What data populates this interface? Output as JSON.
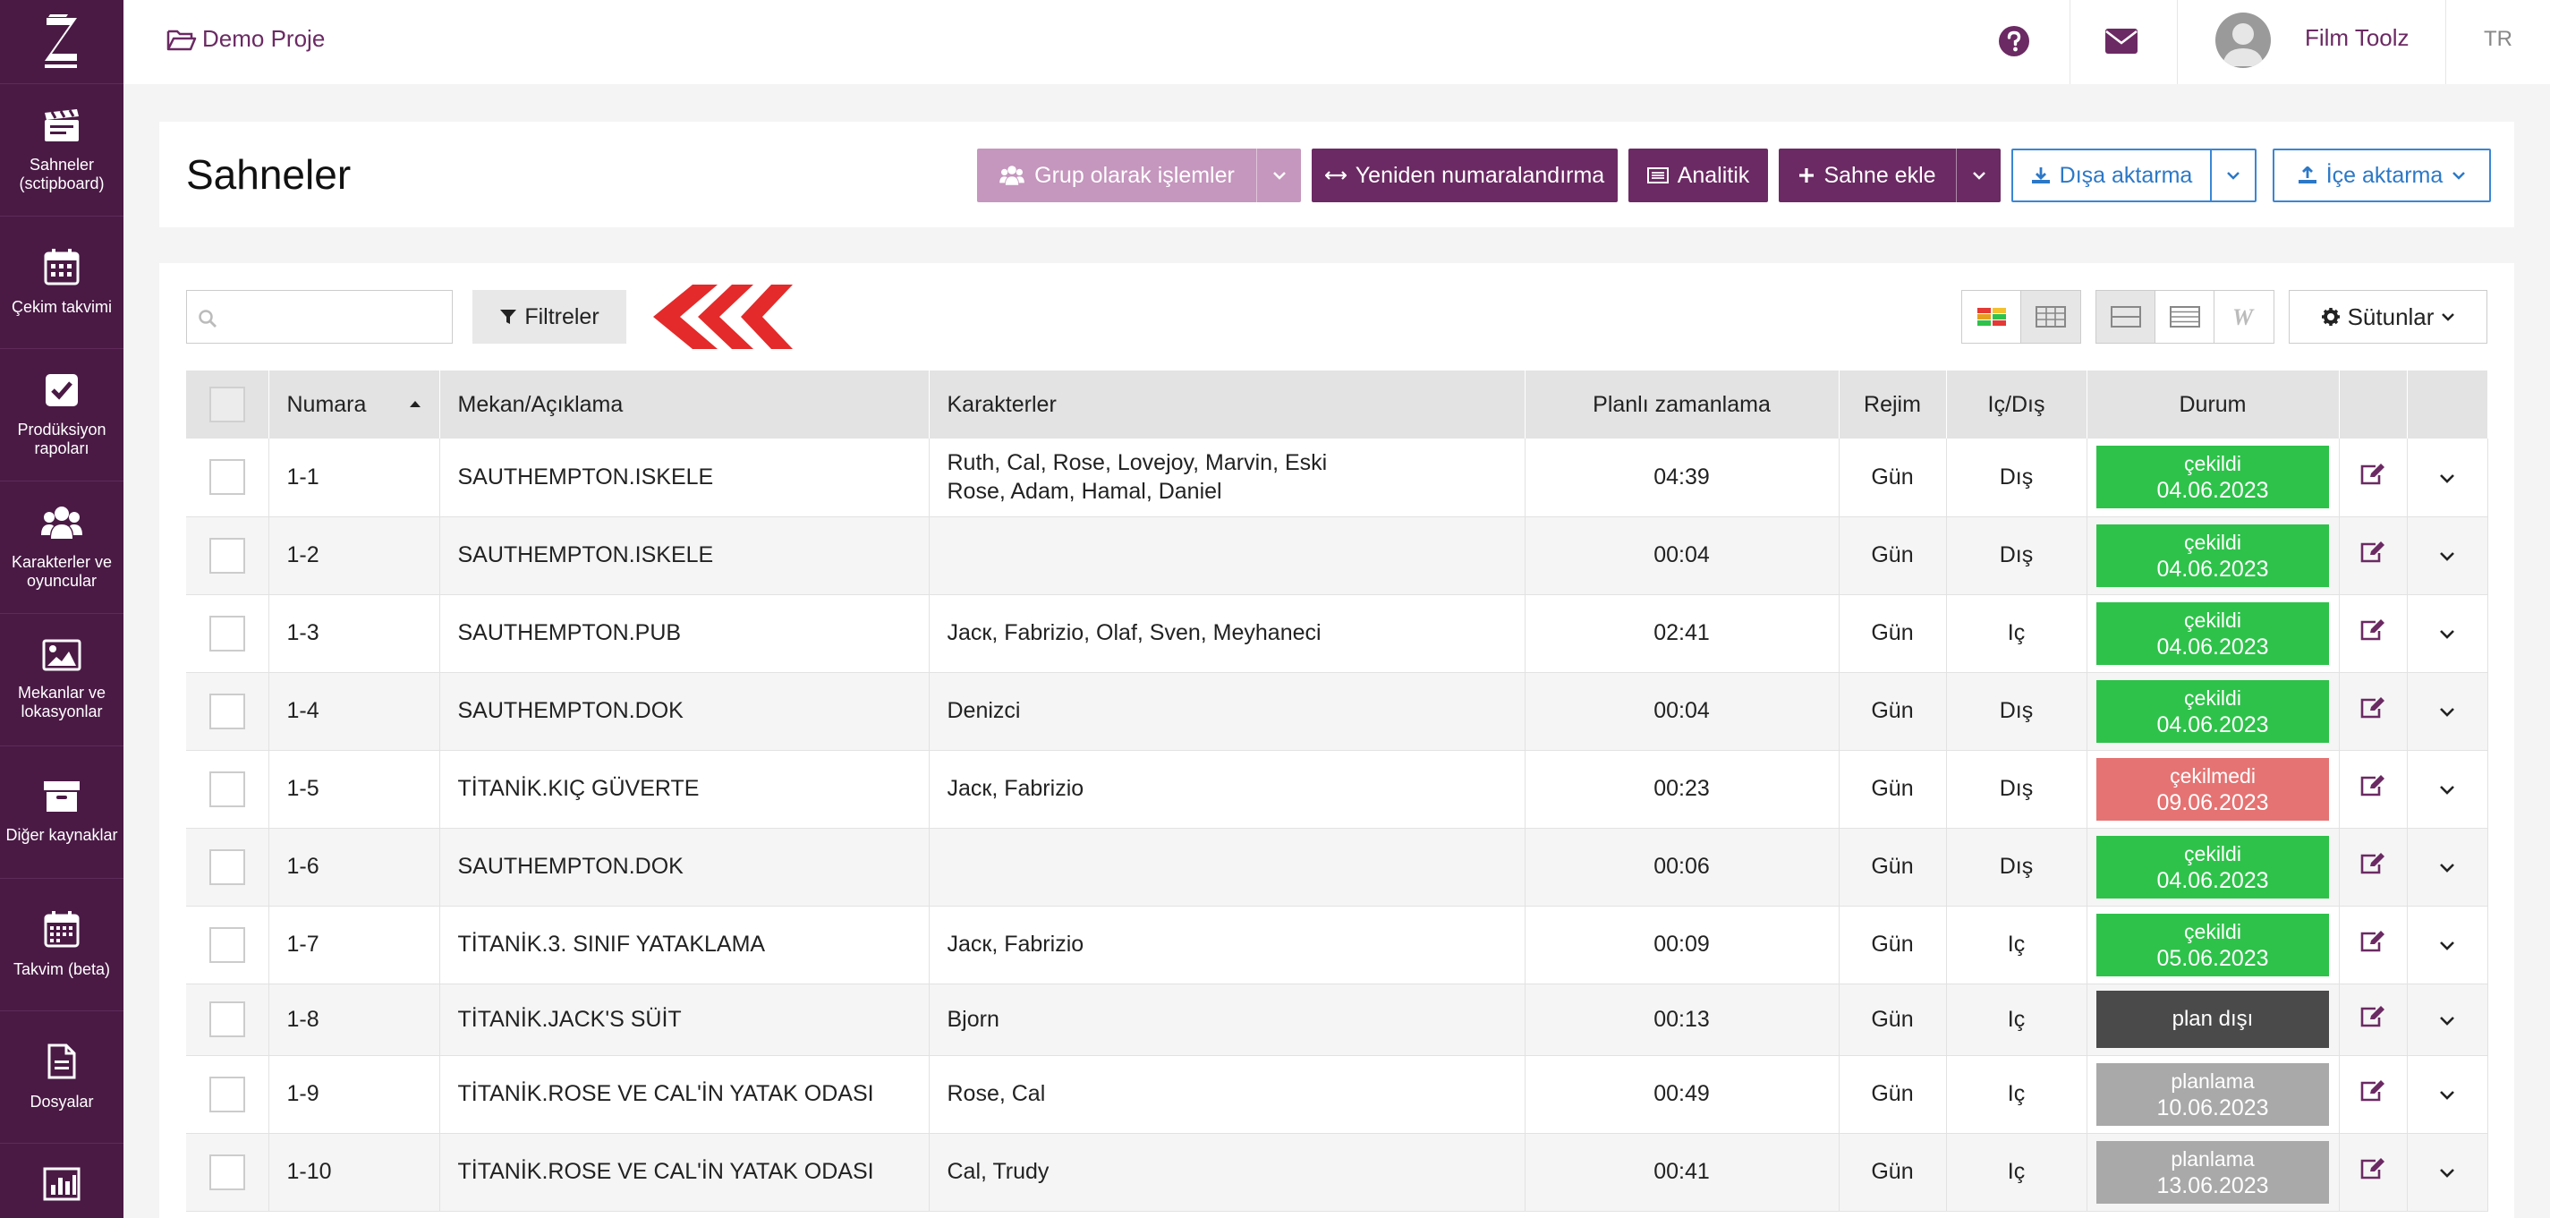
{
  "sidebar": {
    "items": [
      {
        "label": "Sahneler (sctipboard)",
        "icon": "clapperboard-icon"
      },
      {
        "label": "Çekim takvimi",
        "icon": "calendar-icon"
      },
      {
        "label": "Prodüksiyon rapoları",
        "icon": "checkbox-icon"
      },
      {
        "label": "Karakterler ve oyuncular",
        "icon": "users-icon"
      },
      {
        "label": "Mekanlar ve lokasyonlar",
        "icon": "image-icon"
      },
      {
        "label": "Diğer kaynaklar",
        "icon": "archive-icon"
      },
      {
        "label": "Takvim (beta)",
        "icon": "calendar-grid-icon"
      },
      {
        "label": "Dosyalar",
        "icon": "file-icon"
      },
      {
        "label": "",
        "icon": "chart-icon"
      }
    ]
  },
  "header": {
    "project": "Demo Proje",
    "user": "Film Toolz",
    "lang": "TR"
  },
  "page": {
    "title": "Sahneler",
    "buttons": {
      "group": "Grup olarak işlemler",
      "renumber": "Yeniden numaralandırma",
      "analytics": "Analitik",
      "add_scene": "Sahne ekle",
      "export": "Dışa aktarma",
      "import": "İçe aktarma"
    }
  },
  "toolbar": {
    "search_placeholder": "",
    "filters": "Filtreler",
    "columns": "Sütunlar"
  },
  "colors": {
    "shot": "#2ec24a",
    "not_shot": "#e57373",
    "off_plan": "#4a4a4a",
    "planning": "#a9a9a9",
    "brand": "#6b2a63"
  },
  "table": {
    "headers": {
      "number": "Numara",
      "location": "Mekan/Açıklama",
      "characters": "Karakterler",
      "planned": "Planlı zamanlama",
      "regime": "Rejim",
      "inout": "Iç/Dış",
      "status": "Durum"
    },
    "rows": [
      {
        "num": "1-1",
        "loc": "SAUTHEMPTON.ISKELE",
        "chars1": "Ruth, Cal, Rose, Lovejoy, Marvin, Eski",
        "chars2": "Rose, Adam, Hamal, Daniel",
        "time": "04:39",
        "regime": "Gün",
        "io": "Dış",
        "status": "çekildi",
        "date": "04.06.2023",
        "kind": "shot"
      },
      {
        "num": "1-2",
        "loc": "SAUTHEMPTON.ISKELE",
        "chars1": "",
        "chars2": "",
        "time": "00:04",
        "regime": "Gün",
        "io": "Dış",
        "status": "çekildi",
        "date": "04.06.2023",
        "kind": "shot"
      },
      {
        "num": "1-3",
        "loc": "SAUTHEMPTON.PUB",
        "chars1": "Jacк, Fabrizio, Olaf, Sven, Meyhaneci",
        "chars2": "",
        "time": "02:41",
        "regime": "Gün",
        "io": "Iç",
        "status": "çekildi",
        "date": "04.06.2023",
        "kind": "shot"
      },
      {
        "num": "1-4",
        "loc": "SAUTHEMPTON.DOK",
        "chars1": "Denizci",
        "chars2": "",
        "time": "00:04",
        "regime": "Gün",
        "io": "Dış",
        "status": "çekildi",
        "date": "04.06.2023",
        "kind": "shot"
      },
      {
        "num": "1-5",
        "loc": "TİTANİK.KIÇ GÜVERTE",
        "chars1": "Jacк, Fabrizio",
        "chars2": "",
        "time": "00:23",
        "regime": "Gün",
        "io": "Dış",
        "status": "çekilmedi",
        "date": "09.06.2023",
        "kind": "not_shot"
      },
      {
        "num": "1-6",
        "loc": "SAUTHEMPTON.DOK",
        "chars1": "",
        "chars2": "",
        "time": "00:06",
        "regime": "Gün",
        "io": "Dış",
        "status": "çekildi",
        "date": "04.06.2023",
        "kind": "shot"
      },
      {
        "num": "1-7",
        "loc": "TİTANİK.3. SINIF YATAKLAMA",
        "chars1": "Jacк, Fabrizio",
        "chars2": "",
        "time": "00:09",
        "regime": "Gün",
        "io": "Iç",
        "status": "çekildi",
        "date": "05.06.2023",
        "kind": "shot"
      },
      {
        "num": "1-8",
        "loc": "TİTANİK.JACK'S SÜİT",
        "chars1": "Bjorn",
        "chars2": "",
        "time": "00:13",
        "regime": "Gün",
        "io": "Iç",
        "status": "plan dışı",
        "date": "",
        "kind": "off_plan"
      },
      {
        "num": "1-9",
        "loc": "TİTANİK.ROSE VE CAL'İN YATAK ODASI",
        "chars1": "Rose, Cal",
        "chars2": "",
        "time": "00:49",
        "regime": "Gün",
        "io": "Iç",
        "status": "planlama",
        "date": "10.06.2023",
        "kind": "planning"
      },
      {
        "num": "1-10",
        "loc": "TİTANİK.ROSE VE CAL'İN YATAK ODASI",
        "chars1": "Cal, Trudy",
        "chars2": "",
        "time": "00:41",
        "regime": "Gün",
        "io": "Iç",
        "status": "planlama",
        "date": "13.06.2023",
        "kind": "planning"
      }
    ]
  }
}
